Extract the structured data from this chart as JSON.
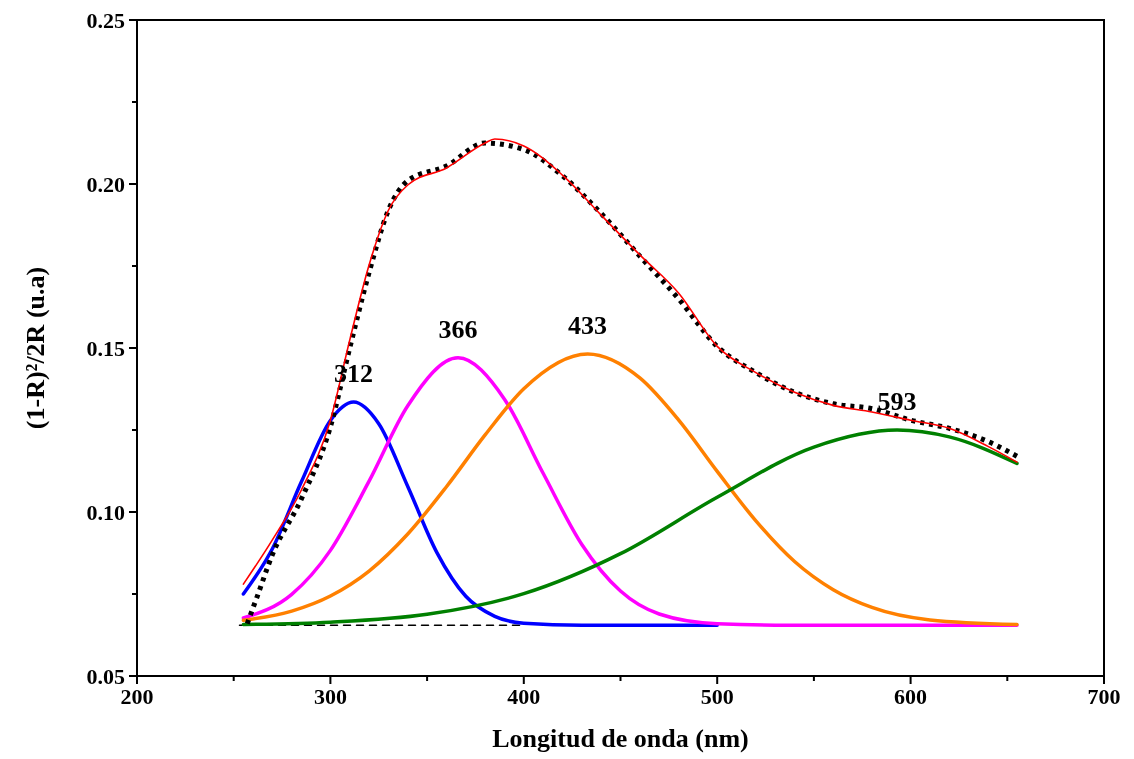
{
  "chart_data": {
    "type": "line",
    "xlabel": "Longitud de onda (nm)",
    "ylabel": "(1-R)²/2R (u.a)",
    "xlim": [
      200,
      700
    ],
    "ylim": [
      0.05,
      0.25
    ],
    "xticks": [
      200,
      {
        "value": 250,
        "label": null
      },
      300,
      {
        "value": 350,
        "label": null
      },
      400,
      {
        "value": 450,
        "label": null
      },
      500,
      {
        "value": 550,
        "label": null
      },
      600,
      {
        "value": 650,
        "label": null
      },
      700
    ],
    "yticks": [
      0.05,
      {
        "value": 0.075,
        "label": null
      },
      {
        "value": 0.1,
        "label": "0.10"
      },
      {
        "value": 0.125,
        "label": null
      },
      0.15,
      {
        "value": 0.175,
        "label": null
      },
      {
        "value": 0.2,
        "label": "0.20"
      },
      {
        "value": 0.225,
        "label": null
      },
      0.25
    ],
    "grid": false,
    "marker": "none",
    "series": [
      {
        "color": "#000000",
        "line_style": "dashed",
        "x": [
          253,
          400
        ],
        "values": [
          0.0655,
          0.0655
        ]
      },
      {
        "color": "#0000ff",
        "x": [
          255,
          270,
          285,
          300,
          312,
          325,
          340,
          355,
          370,
          385,
          400,
          430,
          500
        ],
        "values": [
          0.075,
          0.0888,
          0.1092,
          0.1279,
          0.1335,
          0.1269,
          0.1078,
          0.0877,
          0.0743,
          0.0682,
          0.0661,
          0.0655,
          0.0655
        ]
      },
      {
        "color": "#ff00ff",
        "x": [
          255,
          280,
          300,
          320,
          340,
          366,
          390,
          410,
          430,
          450,
          470,
          500,
          530,
          655
        ],
        "values": [
          0.0677,
          0.0749,
          0.0883,
          0.1094,
          0.1324,
          0.147,
          0.1344,
          0.1118,
          0.0901,
          0.0759,
          0.0689,
          0.0659,
          0.0655,
          0.0655
        ]
      },
      {
        "color": "#ff8000",
        "x": [
          255,
          280,
          300,
          320,
          340,
          360,
          380,
          400,
          433,
          460,
          480,
          500,
          520,
          540,
          560,
          580,
          610,
          655
        ],
        "values": [
          0.067,
          0.0698,
          0.0744,
          0.082,
          0.0933,
          0.1077,
          0.1235,
          0.1376,
          0.1482,
          0.1409,
          0.1281,
          0.1124,
          0.0973,
          0.0849,
          0.0763,
          0.0709,
          0.0671,
          0.0657
        ]
      },
      {
        "color": "#008000",
        "x": [
          255,
          300,
          350,
          400,
          450,
          500,
          550,
          593,
          620,
          655
        ],
        "values": [
          0.0657,
          0.0664,
          0.0688,
          0.0751,
          0.0873,
          0.1045,
          0.1198,
          0.125,
          0.1229,
          0.1148
        ]
      },
      {
        "color": "#000000",
        "line_style": "dotted",
        "x": [
          257,
          262,
          270,
          285,
          300,
          310,
          320,
          330,
          340,
          360,
          380,
          400,
          420,
          440,
          460,
          480,
          500,
          520,
          540,
          560,
          580,
          600,
          620,
          640,
          655
        ],
        "values": [
          0.066,
          0.074,
          0.087,
          0.104,
          0.126,
          0.15,
          0.173,
          0.192,
          0.201,
          0.2055,
          0.2125,
          0.2105,
          0.2025,
          0.191,
          0.178,
          0.165,
          0.1505,
          0.1425,
          0.1365,
          0.133,
          0.1315,
          0.128,
          0.1255,
          0.1215,
          0.117
        ]
      },
      {
        "color": "#ff0000",
        "x": [
          255,
          270,
          285,
          300,
          310,
          320,
          330,
          340,
          360,
          380,
          385,
          400,
          420,
          440,
          460,
          480,
          500,
          520,
          540,
          560,
          580,
          600,
          620,
          640,
          655
        ],
        "values": [
          0.078,
          0.0915,
          0.1067,
          0.128,
          0.1524,
          0.1753,
          0.192,
          0.1997,
          0.2049,
          0.2125,
          0.2137,
          0.2116,
          0.2027,
          0.1905,
          0.1784,
          0.1668,
          0.1505,
          0.1425,
          0.1365,
          0.1325,
          0.1305,
          0.128,
          0.1255,
          0.12,
          0.1152
        ]
      }
    ],
    "annotations": [
      {
        "text": "312",
        "x": 312,
        "y": 0.1335
      },
      {
        "text": "366",
        "x": 366,
        "y": 0.147
      },
      {
        "text": "433",
        "x": 433,
        "y": 0.1482
      },
      {
        "text": "593",
        "x": 593,
        "y": 0.125
      }
    ]
  }
}
